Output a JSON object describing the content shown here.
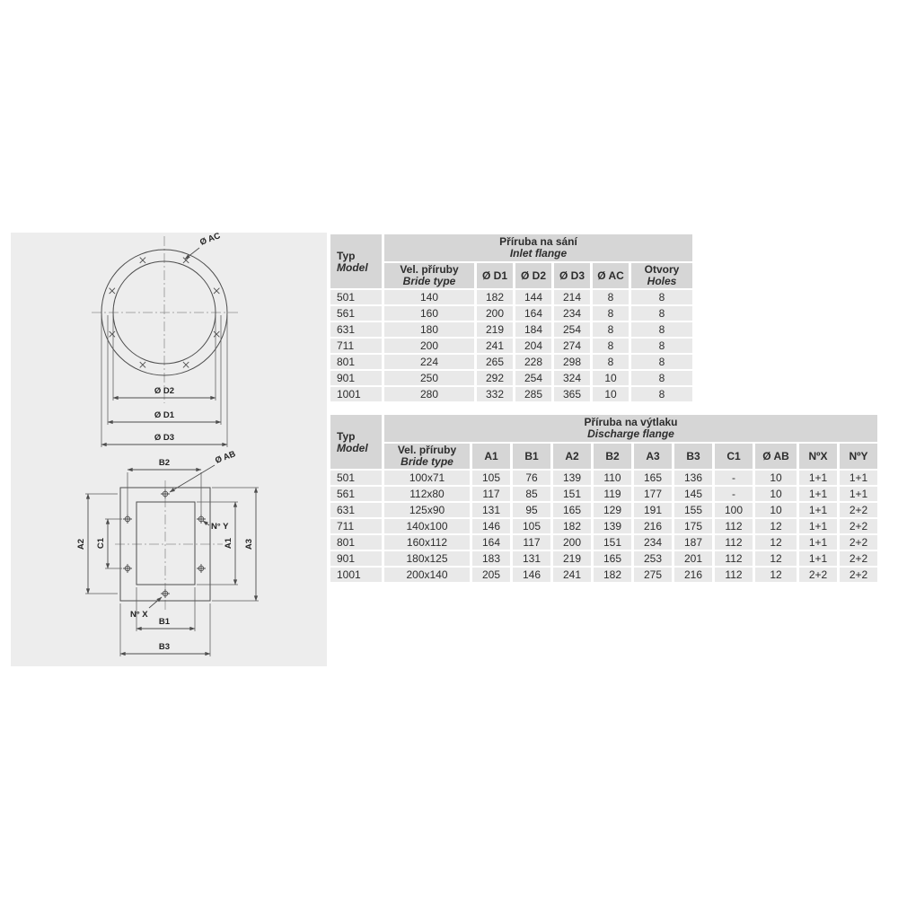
{
  "diagram": {
    "circle": {
      "ac": "Ø AC",
      "d2": "Ø D2",
      "d1": "Ø D1",
      "d3": "Ø D3"
    },
    "square": {
      "b2": "B2",
      "ab": "Ø AB",
      "ny": "N° Y",
      "a2": "A2",
      "c1": "C1",
      "a1": "A1",
      "a3": "A3",
      "nx": "N° X",
      "b1": "B1",
      "b3": "B3"
    }
  },
  "tables": [
    {
      "typ_label": "Typ",
      "model_label": "Model",
      "title_cz": "Příruba na sání",
      "title_en": "Inlet flange",
      "size_cz": "Vel. příruby",
      "size_en": "Bride type",
      "cols": [
        "Ø D1",
        "Ø D2",
        "Ø D3",
        "Ø AC"
      ],
      "holes_cz": "Otvory",
      "holes_en": "Holes",
      "rows": [
        [
          "501",
          "140",
          "182",
          "144",
          "214",
          "8",
          "8"
        ],
        [
          "561",
          "160",
          "200",
          "164",
          "234",
          "8",
          "8"
        ],
        [
          "631",
          "180",
          "219",
          "184",
          "254",
          "8",
          "8"
        ],
        [
          "711",
          "200",
          "241",
          "204",
          "274",
          "8",
          "8"
        ],
        [
          "801",
          "224",
          "265",
          "228",
          "298",
          "8",
          "8"
        ],
        [
          "901",
          "250",
          "292",
          "254",
          "324",
          "10",
          "8"
        ],
        [
          "1001",
          "280",
          "332",
          "285",
          "365",
          "10",
          "8"
        ]
      ]
    },
    {
      "typ_label": "Typ",
      "model_label": "Model",
      "title_cz": "Příruba na výtlaku",
      "title_en": "Discharge flange",
      "size_cz": "Vel. příruby",
      "size_en": "Bride type",
      "cols": [
        "A1",
        "B1",
        "A2",
        "B2",
        "A3",
        "B3",
        "C1",
        "Ø AB",
        "NºX",
        "NºY"
      ],
      "rows": [
        [
          "501",
          "100x71",
          "105",
          "76",
          "139",
          "110",
          "165",
          "136",
          "-",
          "10",
          "1+1",
          "1+1"
        ],
        [
          "561",
          "112x80",
          "117",
          "85",
          "151",
          "119",
          "177",
          "145",
          "-",
          "10",
          "1+1",
          "1+1"
        ],
        [
          "631",
          "125x90",
          "131",
          "95",
          "165",
          "129",
          "191",
          "155",
          "100",
          "10",
          "1+1",
          "2+2"
        ],
        [
          "711",
          "140x100",
          "146",
          "105",
          "182",
          "139",
          "216",
          "175",
          "112",
          "12",
          "1+1",
          "2+2"
        ],
        [
          "801",
          "160x112",
          "164",
          "117",
          "200",
          "151",
          "234",
          "187",
          "112",
          "12",
          "1+1",
          "2+2"
        ],
        [
          "901",
          "180x125",
          "183",
          "131",
          "219",
          "165",
          "253",
          "201",
          "112",
          "12",
          "1+1",
          "2+2"
        ],
        [
          "1001",
          "200x140",
          "205",
          "146",
          "241",
          "182",
          "275",
          "216",
          "112",
          "12",
          "2+2",
          "2+2"
        ]
      ]
    }
  ],
  "colors": {
    "header_bg": "#d6d6d6",
    "row_bg": "#e9e9e9",
    "diagram_bg": "#ededed",
    "line": "#4d4d4d",
    "text": "#2d2d2d"
  }
}
